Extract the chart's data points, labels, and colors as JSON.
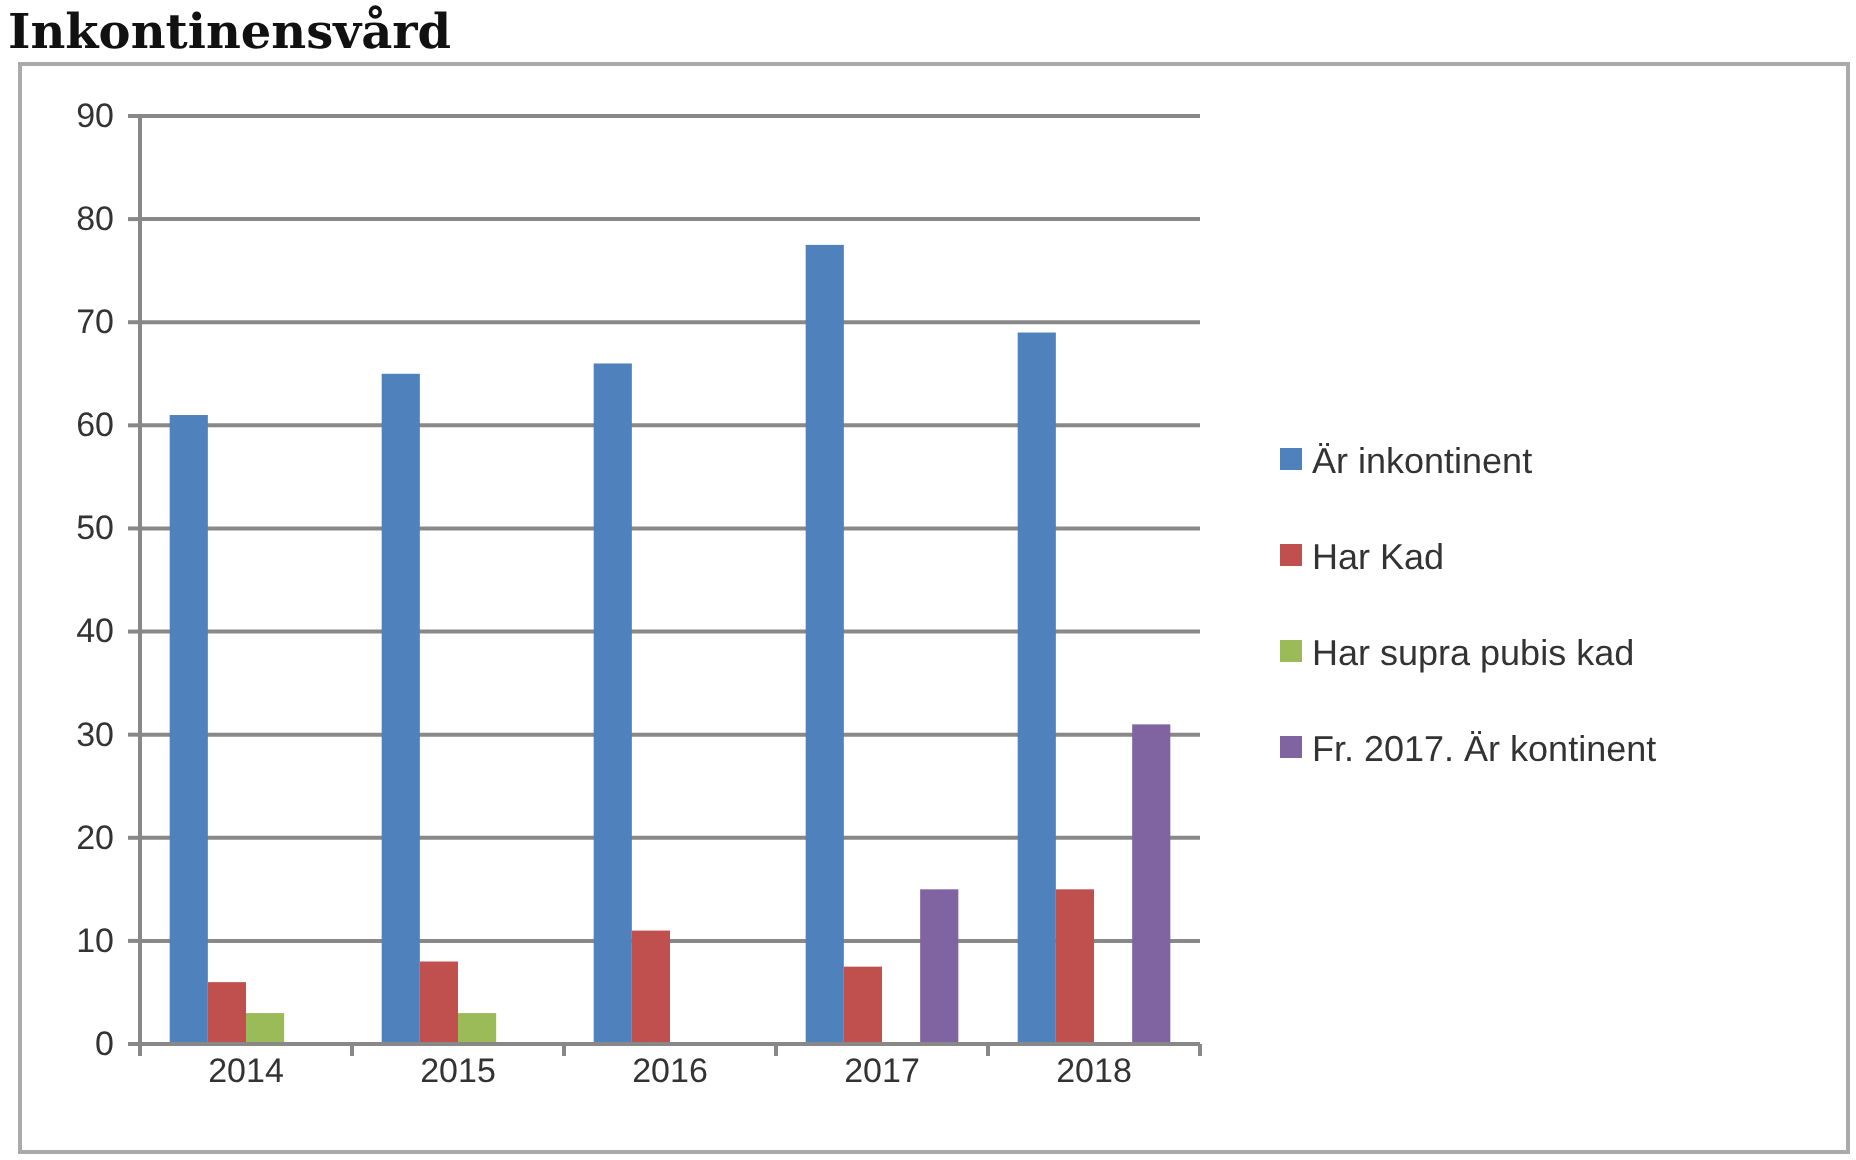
{
  "chart_data": {
    "type": "bar",
    "title": "Inkontinensvård",
    "categories": [
      "2014",
      "2015",
      "2016",
      "2017",
      "2018"
    ],
    "series": [
      {
        "name": "Är inkontinent",
        "color": "#4f81bd",
        "values": [
          61,
          65,
          66,
          77.5,
          69
        ]
      },
      {
        "name": "Har Kad",
        "color": "#c0504d",
        "values": [
          6,
          8,
          11,
          7.5,
          15
        ]
      },
      {
        "name": "Har supra pubis kad",
        "color": "#9bbb59",
        "values": [
          3,
          3,
          null,
          null,
          null
        ]
      },
      {
        "name": "Fr. 2017. Är kontinent",
        "color": "#8064a2",
        "values": [
          null,
          null,
          null,
          15,
          31
        ]
      }
    ],
    "ylim": [
      0,
      90
    ],
    "yticks": [
      0,
      10,
      20,
      30,
      40,
      50,
      60,
      70,
      80,
      90
    ],
    "grid": "y",
    "legend": "right"
  }
}
